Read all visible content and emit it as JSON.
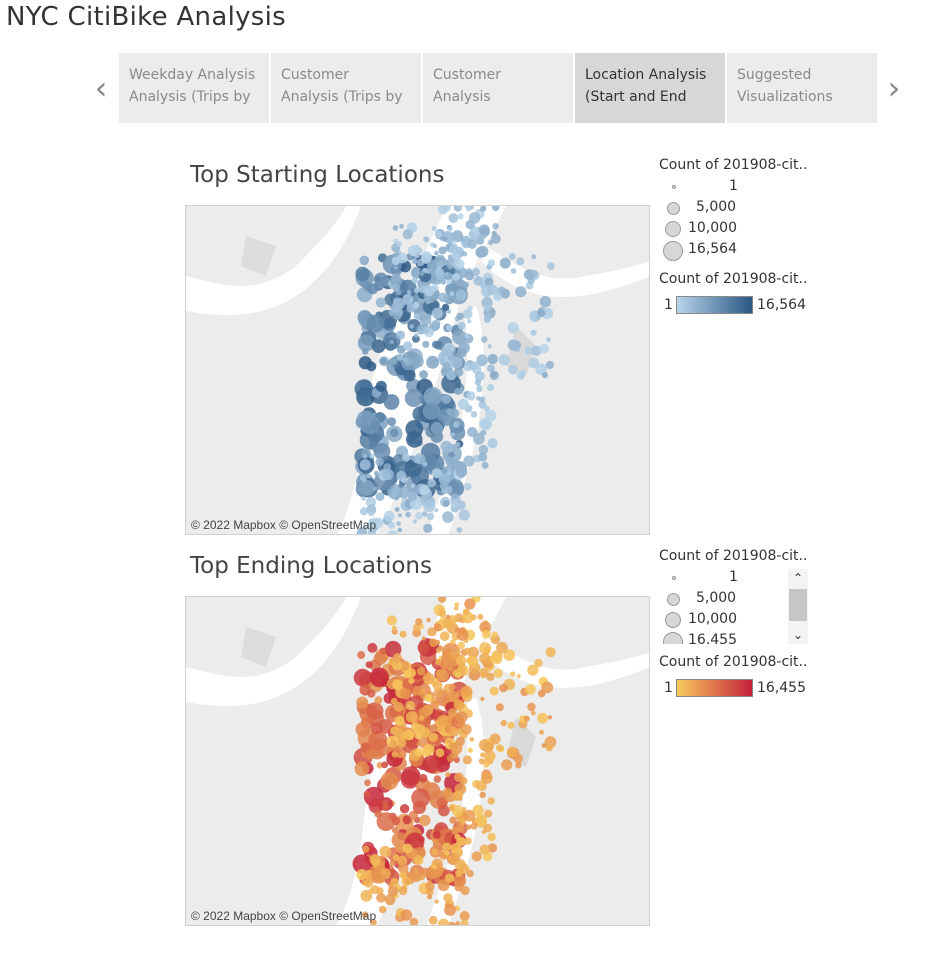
{
  "title": "NYC CitiBike Analysis",
  "nav": {
    "prev_icon": "chevron-left-icon",
    "next_icon": "chevron-right-icon",
    "tabs": [
      {
        "line1": "Weekday Analysis",
        "line2": "Analysis (Trips by",
        "active": false
      },
      {
        "line1": "Customer",
        "line2": "Analysis (Trips by",
        "active": false
      },
      {
        "line1": "Customer",
        "line2": "Analysis",
        "active": false
      },
      {
        "line1": "Location Analysis",
        "line2": "(Start and End",
        "active": true
      },
      {
        "line1": "Suggested",
        "line2": "Visualizations",
        "active": false
      }
    ]
  },
  "start_map": {
    "title": "Top Starting Locations",
    "attribution": "© 2022 Mapbox © OpenStreetMap",
    "color_low": "#b7d4ea",
    "color_high": "#2a5783"
  },
  "start_legend": {
    "size_title": "Count of 201908-cit..",
    "sizes": [
      "1",
      "5,000",
      "10,000",
      "16,564"
    ],
    "color_title": "Count of 201908-cit..",
    "min": "1",
    "max": "16,564"
  },
  "end_map": {
    "title": "Top Ending Locations",
    "attribution": "© 2022 Mapbox © OpenStreetMap",
    "color_low": "#f7c95b",
    "color_high": "#c4223a"
  },
  "end_legend": {
    "size_title": "Count of 201908-cit..",
    "sizes": [
      "1",
      "5,000",
      "10,000",
      "16,455"
    ],
    "color_title": "Count of 201908-cit..",
    "min": "1",
    "max": "16,455",
    "scroll_up_icon": "chevron-up-icon",
    "scroll_down_icon": "chevron-down-icon"
  }
}
